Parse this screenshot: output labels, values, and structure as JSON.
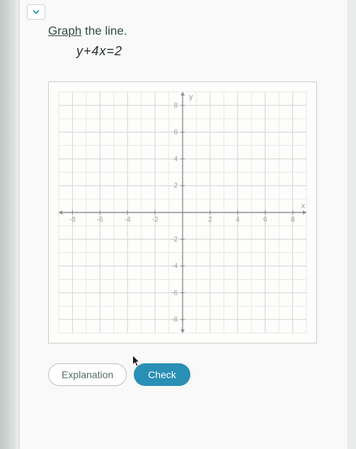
{
  "colors": {
    "primary_button": "#2a8fb5",
    "outline_border": "#b8c2be",
    "text": "#3a4a4a",
    "grid_minor": "#e6e9e7",
    "grid_major": "#d4d9d6",
    "axis": "#8a928e",
    "axis_label": "#9aa39e",
    "graph_bg": "#fdfdfc"
  },
  "prompt": {
    "underlined": "Graph",
    "rest": " the line."
  },
  "equation": "y+4x=2",
  "graph": {
    "type": "cartesian-grid",
    "xlim": [
      -9,
      9
    ],
    "ylim": [
      -9,
      9
    ],
    "major_step": 2,
    "minor_step": 1,
    "x_ticks": [
      -8,
      -6,
      -4,
      -2,
      2,
      4,
      6,
      8
    ],
    "y_ticks": [
      -8,
      -6,
      -4,
      -2,
      2,
      4,
      6,
      8
    ],
    "x_axis_label": "x",
    "y_axis_label": "y",
    "tick_fontsize": 10
  },
  "buttons": {
    "explanation": "Explanation",
    "check": "Check"
  }
}
